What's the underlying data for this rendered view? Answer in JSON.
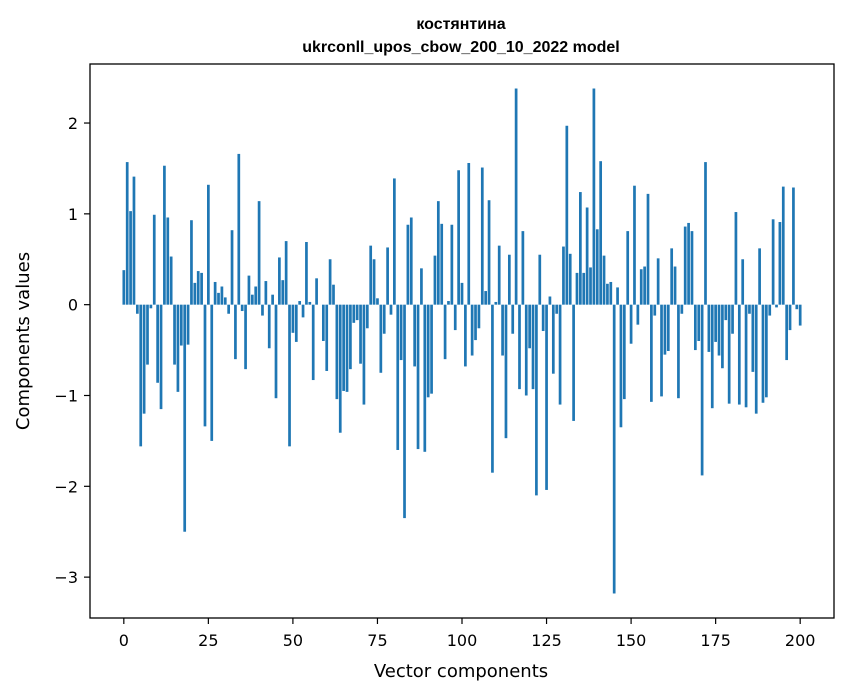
{
  "chart_data": {
    "type": "bar",
    "title": "костянтина",
    "subtitle": "ukrconll_upos_cbow_200_10_2022 model",
    "xlabel": "Vector components",
    "ylabel": "Components values",
    "xlim": [
      -10,
      210
    ],
    "ylim": [
      -3.45,
      2.65
    ],
    "x_ticks": [
      0,
      25,
      50,
      75,
      100,
      125,
      150,
      175,
      200
    ],
    "y_ticks": [
      -3,
      -2,
      -1,
      0,
      1,
      2
    ],
    "grid": false,
    "bar_color": "#1f77b4",
    "values": [
      0.38,
      1.57,
      1.03,
      1.41,
      -0.1,
      -1.56,
      -1.2,
      -0.66,
      -0.04,
      0.99,
      -0.86,
      -1.15,
      1.53,
      0.96,
      0.53,
      -0.66,
      -0.96,
      -0.45,
      -2.5,
      -0.44,
      0.93,
      0.24,
      0.37,
      0.35,
      -1.34,
      1.32,
      -1.5,
      0.25,
      0.13,
      0.2,
      0.08,
      -0.1,
      0.82,
      -0.6,
      1.66,
      -0.07,
      -0.71,
      0.32,
      0.11,
      0.2,
      1.14,
      -0.12,
      0.26,
      -0.48,
      0.11,
      -1.03,
      0.52,
      0.27,
      0.7,
      -1.56,
      -0.31,
      -0.41,
      0.04,
      -0.14,
      0.69,
      0.03,
      -0.83,
      0.29,
      0.0,
      -0.4,
      -0.73,
      0.5,
      0.22,
      -1.04,
      -1.41,
      -0.95,
      -0.96,
      -0.71,
      -0.2,
      -0.17,
      -0.65,
      -1.1,
      -0.26,
      0.65,
      0.5,
      0.07,
      -0.75,
      -0.32,
      0.63,
      -0.11,
      1.39,
      -1.6,
      -0.61,
      -2.35,
      0.88,
      0.96,
      -0.68,
      -1.59,
      0.4,
      -1.62,
      -1.02,
      -0.98,
      0.54,
      1.14,
      0.89,
      -0.6,
      0.04,
      0.88,
      -0.28,
      1.48,
      0.24,
      -0.68,
      1.56,
      -0.56,
      -0.39,
      -0.26,
      1.51,
      0.15,
      1.15,
      -1.85,
      0.03,
      0.65,
      -0.56,
      -1.47,
      0.55,
      -0.32,
      2.38,
      -0.93,
      0.81,
      -1.0,
      -0.48,
      -0.93,
      -2.1,
      0.55,
      -0.29,
      -2.04,
      0.09,
      -0.76,
      -0.1,
      -1.1,
      0.64,
      1.97,
      0.56,
      -1.28,
      0.35,
      1.24,
      0.35,
      1.07,
      0.41,
      2.38,
      0.83,
      1.58,
      0.54,
      0.23,
      0.25,
      -3.18,
      0.19,
      -1.35,
      -1.04,
      0.81,
      -0.43,
      1.31,
      -0.22,
      0.39,
      0.42,
      1.22,
      -1.07,
      -0.12,
      0.51,
      -1.01,
      -0.55,
      -0.51,
      0.62,
      0.42,
      -1.03,
      -0.1,
      0.86,
      0.9,
      0.81,
      -0.5,
      -0.4,
      -1.88,
      1.57,
      -0.52,
      -1.14,
      -0.41,
      -0.56,
      -0.7,
      -0.17,
      -1.09,
      -0.32,
      1.02,
      -1.1,
      0.5,
      -1.13,
      -0.1,
      -0.74,
      -1.2,
      0.62,
      -1.08,
      -1.02,
      -0.12,
      0.94,
      -0.03,
      0.91,
      1.3,
      -0.61,
      -0.28,
      1.29,
      -0.05,
      -0.23
    ]
  }
}
